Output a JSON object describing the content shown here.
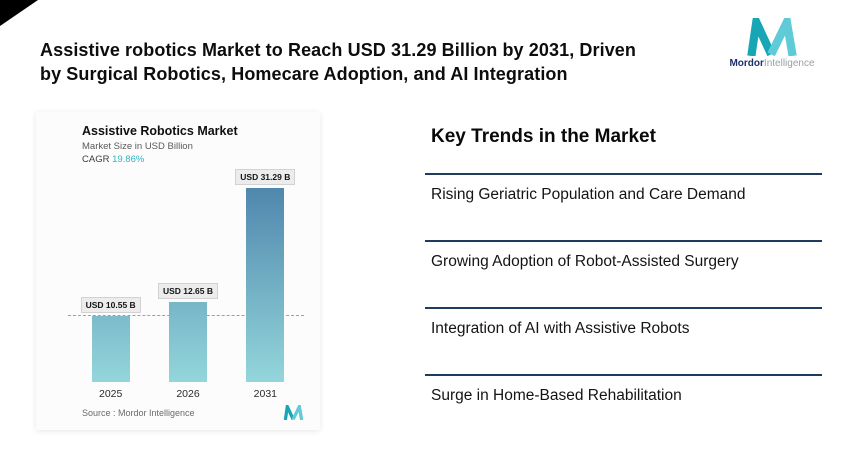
{
  "header": {
    "title_lines": [
      "Assistive robotics Market to Reach USD 31.29 Billion by 2031, Driven",
      "by Surgical Robotics, Homecare Adoption, and AI Integration"
    ],
    "logo": {
      "brand_bold": "Mordor",
      "brand_light": "Intelligence"
    }
  },
  "chart": {
    "title": "Assistive Robotics Market",
    "subtitle": "Market Size in USD Billion",
    "cagr_label": "CAGR",
    "cagr_value": "19.86%",
    "source": "Source :  Mordor Intelligence"
  },
  "chart_data": {
    "type": "bar",
    "title": "Assistive Robotics Market",
    "ylabel": "Market Size in USD Billion",
    "cagr": "19.86%",
    "categories": [
      "2025",
      "2026",
      "2031"
    ],
    "values": [
      10.55,
      12.65,
      31.29
    ],
    "bar_labels": [
      "USD 10.55 B",
      "USD 12.65 B",
      "USD 31.29 B"
    ],
    "ylim": [
      0,
      34
    ],
    "reference_line": 10.55,
    "grid": false,
    "legend": "none"
  },
  "trends": {
    "heading": "Key Trends in the Market",
    "items": [
      "Rising Geriatric Population and Care Demand",
      "Growing Adoption of Robot-Assisted Surgery",
      "Integration of AI with Assistive Robots",
      "Surge in Home-Based Rehabilitation"
    ]
  },
  "colors": {
    "accent_teal": "#2eb7bf",
    "line_navy": "#1d3c5e",
    "bar_top": "#4f86ad",
    "bar_bottom": "#93d6da",
    "logo_navy": "#1c2f6b"
  }
}
